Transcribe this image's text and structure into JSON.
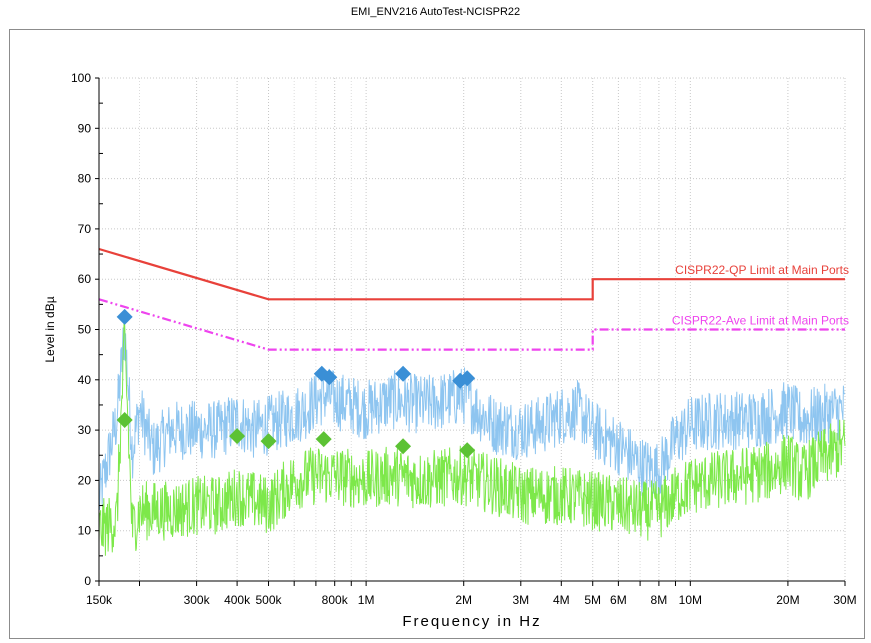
{
  "title": "EMI_ENV216 AutoTest-NCISPR22",
  "chart_data": {
    "type": "line",
    "title": "EMI_ENV216 AutoTest-NCISPR22",
    "xlabel": "Frequency in Hz",
    "ylabel": "Level in dBµ",
    "x_scale": "log",
    "xlim": [
      150000,
      30000000
    ],
    "ylim": [
      0,
      100
    ],
    "y_ticks": [
      0,
      10,
      20,
      30,
      40,
      50,
      60,
      70,
      80,
      90,
      100
    ],
    "x_ticks": [
      {
        "value": 150000,
        "label": "150k"
      },
      {
        "value": 300000,
        "label": "300k"
      },
      {
        "value": 400000,
        "label": "400k"
      },
      {
        "value": 500000,
        "label": "500k"
      },
      {
        "value": 800000,
        "label": "800k"
      },
      {
        "value": 1000000,
        "label": "1M"
      },
      {
        "value": 2000000,
        "label": "2M"
      },
      {
        "value": 3000000,
        "label": "3M"
      },
      {
        "value": 4000000,
        "label": "4M"
      },
      {
        "value": 5000000,
        "label": "5M"
      },
      {
        "value": 6000000,
        "label": "6M"
      },
      {
        "value": 8000000,
        "label": "8M"
      },
      {
        "value": 10000000,
        "label": "10M"
      },
      {
        "value": 20000000,
        "label": "20M"
      },
      {
        "value": 30000000,
        "label": "30M"
      }
    ],
    "minor_x_ticks": [
      200000,
      600000,
      700000,
      900000,
      7000000,
      9000000
    ],
    "grid": true,
    "series": [
      {
        "kind": "limit",
        "name": "CISPR22-QP Limit at Main Ports",
        "color": "#e8413a",
        "style": "solid",
        "points": [
          [
            150000,
            66
          ],
          [
            500000,
            56
          ],
          [
            5000000,
            56
          ],
          [
            5000000,
            60
          ],
          [
            30000000,
            60
          ]
        ]
      },
      {
        "kind": "limit",
        "name": "CISPR22-Ave Limit at Main Ports",
        "color": "#ee44ee",
        "style": "dashdot",
        "points": [
          [
            150000,
            56
          ],
          [
            500000,
            46
          ],
          [
            5000000,
            46
          ],
          [
            5000000,
            50
          ],
          [
            30000000,
            50
          ]
        ]
      },
      {
        "kind": "scan",
        "color": "#8ec5f0",
        "points": [
          [
            150000,
            16
          ],
          [
            170000,
            32
          ],
          [
            180000,
            50
          ],
          [
            190000,
            26
          ],
          [
            200000,
            34
          ],
          [
            220000,
            26
          ],
          [
            250000,
            30
          ],
          [
            300000,
            30
          ],
          [
            350000,
            30
          ],
          [
            400000,
            32
          ],
          [
            450000,
            30
          ],
          [
            500000,
            31
          ],
          [
            550000,
            32
          ],
          [
            600000,
            33
          ],
          [
            650000,
            34
          ],
          [
            700000,
            36
          ],
          [
            750000,
            37
          ],
          [
            800000,
            36
          ],
          [
            900000,
            35
          ],
          [
            1000000,
            34
          ],
          [
            1200000,
            36
          ],
          [
            1500000,
            35
          ],
          [
            1800000,
            36
          ],
          [
            2000000,
            37
          ],
          [
            2200000,
            34
          ],
          [
            2500000,
            31
          ],
          [
            3000000,
            30
          ],
          [
            3500000,
            31
          ],
          [
            4000000,
            33
          ],
          [
            4500000,
            34
          ],
          [
            5000000,
            30
          ],
          [
            6000000,
            27
          ],
          [
            7000000,
            23
          ],
          [
            8000000,
            22
          ],
          [
            9000000,
            28
          ],
          [
            10000000,
            31
          ],
          [
            12000000,
            32
          ],
          [
            15000000,
            32
          ],
          [
            18000000,
            33
          ],
          [
            20000000,
            34
          ],
          [
            22000000,
            32
          ],
          [
            25000000,
            33
          ],
          [
            30000000,
            34
          ]
        ]
      },
      {
        "kind": "scan",
        "color": "#7de84a",
        "points": [
          [
            150000,
            10
          ],
          [
            170000,
            12
          ],
          [
            180000,
            48
          ],
          [
            190000,
            10
          ],
          [
            200000,
            14
          ],
          [
            250000,
            14
          ],
          [
            300000,
            15
          ],
          [
            350000,
            15
          ],
          [
            400000,
            17
          ],
          [
            500000,
            15
          ],
          [
            600000,
            20
          ],
          [
            700000,
            21
          ],
          [
            800000,
            21
          ],
          [
            1000000,
            20
          ],
          [
            1200000,
            21
          ],
          [
            1500000,
            20
          ],
          [
            2000000,
            21
          ],
          [
            2500000,
            19
          ],
          [
            3000000,
            17
          ],
          [
            4000000,
            17
          ],
          [
            5000000,
            16
          ],
          [
            6000000,
            15
          ],
          [
            7000000,
            14
          ],
          [
            8000000,
            14
          ],
          [
            9000000,
            17
          ],
          [
            10000000,
            19
          ],
          [
            12000000,
            20
          ],
          [
            15000000,
            21
          ],
          [
            18000000,
            22
          ],
          [
            20000000,
            24
          ],
          [
            22000000,
            21
          ],
          [
            25000000,
            24
          ],
          [
            30000000,
            27
          ]
        ]
      },
      {
        "kind": "markers",
        "color": "#3a8fd6",
        "marker": "diamond",
        "points": [
          [
            180000,
            52.5
          ],
          [
            730000,
            41.2
          ],
          [
            770000,
            40.5
          ],
          [
            1300000,
            41.2
          ],
          [
            1950000,
            39.8
          ],
          [
            2050000,
            40.3
          ]
        ]
      },
      {
        "kind": "markers",
        "color": "#5cc234",
        "marker": "diamond",
        "points": [
          [
            180000,
            32
          ],
          [
            400000,
            28.8
          ],
          [
            500000,
            27.8
          ],
          [
            740000,
            28.2
          ],
          [
            1300000,
            26.8
          ],
          [
            2050000,
            26
          ]
        ]
      }
    ]
  }
}
